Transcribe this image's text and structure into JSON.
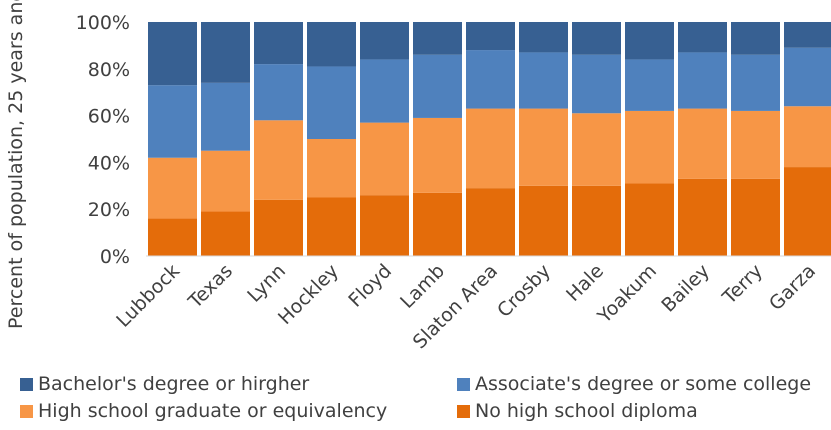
{
  "chart_data": {
    "type": "bar",
    "stacked": true,
    "ylabel": "Percent of population, 25 years and older",
    "ylim": [
      0,
      100
    ],
    "yticks": [
      "0%",
      "20%",
      "40%",
      "60%",
      "80%",
      "100%"
    ],
    "grid": false,
    "legend_position": "bottom",
    "categories": [
      "Lubbock",
      "Texas",
      "Lynn",
      "Hockley",
      "Floyd",
      "Lamb",
      "Slaton Area",
      "Crosby",
      "Hale",
      "Yoakum",
      "Bailey",
      "Terry",
      "Garza"
    ],
    "series": [
      {
        "name": "No high school diploma",
        "color": "#E46C0A",
        "values": [
          16,
          19,
          24,
          25,
          26,
          27,
          29,
          30,
          30,
          31,
          33,
          33,
          38
        ]
      },
      {
        "name": "High school graduate or equivalency",
        "color": "#F79646",
        "values": [
          26,
          26,
          34,
          25,
          31,
          32,
          34,
          33,
          31,
          31,
          30,
          29,
          26
        ]
      },
      {
        "name": "Associate's degree or some college",
        "color": "#4F81BD",
        "values": [
          31,
          29,
          24,
          31,
          27,
          27,
          25,
          24,
          25,
          22,
          24,
          24,
          25
        ]
      },
      {
        "name": "Bachelor's degree or hirgher",
        "color": "#376092",
        "values": [
          27,
          26,
          18,
          19,
          16,
          14,
          12,
          13,
          14,
          16,
          13,
          14,
          11
        ]
      }
    ]
  },
  "legend": {
    "items": [
      {
        "label": "Bachelor's degree or hirgher",
        "color": "#376092"
      },
      {
        "label": "Associate's degree or some college",
        "color": "#4F81BD"
      },
      {
        "label": "High school graduate or equivalency",
        "color": "#F79646"
      },
      {
        "label": "No high school diploma",
        "color": "#E46C0A"
      }
    ]
  }
}
